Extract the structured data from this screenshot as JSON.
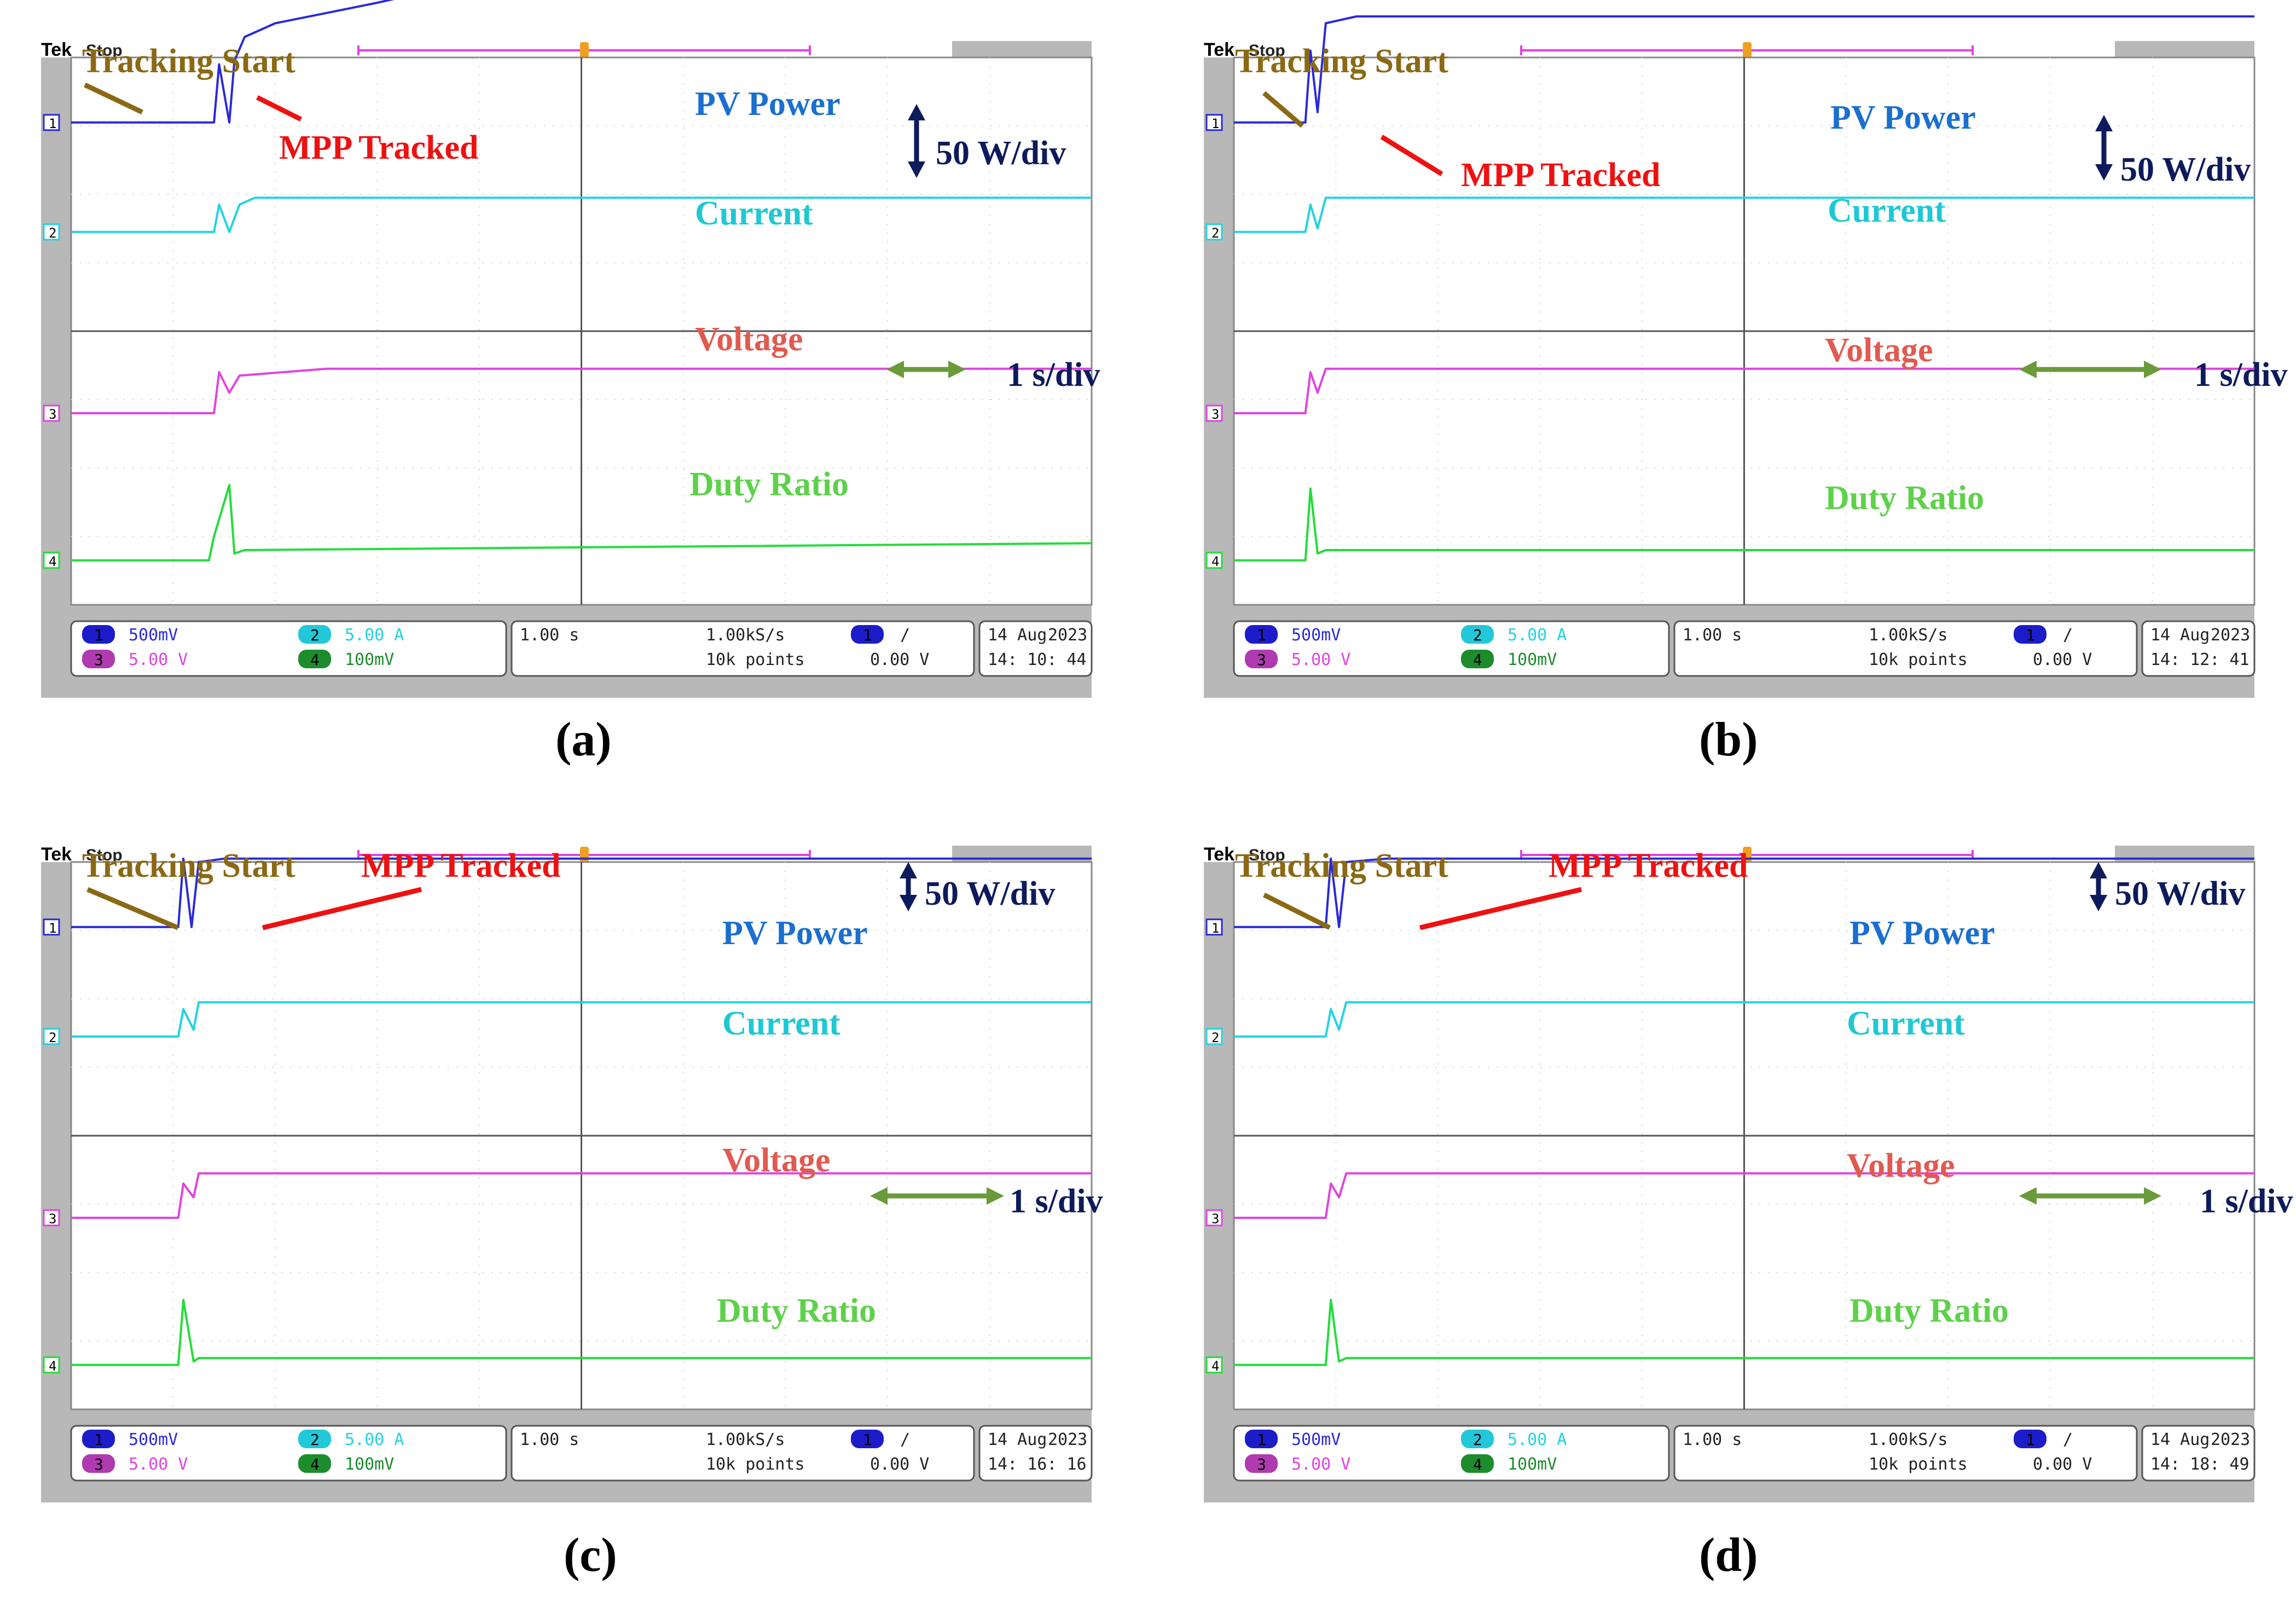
{
  "figure": {
    "subfigures": [
      {
        "caption": "(a)",
        "scope": {
          "brand": "Tek",
          "status": "Stop",
          "ch1": {
            "num": "1",
            "scale": "500mV"
          },
          "ch2": {
            "num": "2",
            "scale": "5.00 A"
          },
          "ch3": {
            "num": "3",
            "scale": "5.00 V"
          },
          "ch4": {
            "num": "4",
            "scale": "100mV"
          },
          "timebase": "1.00 s",
          "sample_rate": "1.00kS/s",
          "record_length": "10k points",
          "trigger_channel": "1",
          "trigger_slope": "/",
          "trigger_level": "0.00 V",
          "date": "14 Aug",
          "year": "2023",
          "time": "14: 10: 44"
        },
        "labels": {
          "tracking_start": "Tracking Start",
          "mpp_tracked": "MPP Tracked",
          "pv_power": "PV Power",
          "current": "Current",
          "voltage": "Voltage",
          "duty_ratio": "Duty Ratio",
          "power_scale": "50 W/div",
          "time_scale": "1 s/div"
        }
      },
      {
        "caption": "(b)",
        "scope": {
          "brand": "Tek",
          "status": "Stop",
          "ch1": {
            "num": "1",
            "scale": "500mV"
          },
          "ch2": {
            "num": "2",
            "scale": "5.00 A"
          },
          "ch3": {
            "num": "3",
            "scale": "5.00 V"
          },
          "ch4": {
            "num": "4",
            "scale": "100mV"
          },
          "timebase": "1.00 s",
          "sample_rate": "1.00kS/s",
          "record_length": "10k points",
          "trigger_channel": "1",
          "trigger_slope": "/",
          "trigger_level": "0.00 V",
          "date": "14 Aug",
          "year": "2023",
          "time": "14: 12: 41"
        },
        "labels": {
          "tracking_start": "Tracking Start",
          "mpp_tracked": "MPP Tracked",
          "pv_power": "PV Power",
          "current": "Current",
          "voltage": "Voltage",
          "duty_ratio": "Duty Ratio",
          "power_scale": "50 W/div",
          "time_scale": "1 s/div"
        }
      },
      {
        "caption": "(c)",
        "scope": {
          "brand": "Tek",
          "status": "Stop",
          "ch1": {
            "num": "1",
            "scale": "500mV"
          },
          "ch2": {
            "num": "2",
            "scale": "5.00 A"
          },
          "ch3": {
            "num": "3",
            "scale": "5.00 V"
          },
          "ch4": {
            "num": "4",
            "scale": "100mV"
          },
          "timebase": "1.00 s",
          "sample_rate": "1.00kS/s",
          "record_length": "10k points",
          "trigger_channel": "1",
          "trigger_slope": "/",
          "trigger_level": "0.00 V",
          "date": "14 Aug",
          "year": "2023",
          "time": "14: 16: 16"
        },
        "labels": {
          "tracking_start": "Tracking Start",
          "mpp_tracked": "MPP Tracked",
          "pv_power": "PV Power",
          "current": "Current",
          "voltage": "Voltage",
          "duty_ratio": "Duty Ratio",
          "power_scale": "50 W/div",
          "time_scale": "1 s/div"
        }
      },
      {
        "caption": "(d)",
        "scope": {
          "brand": "Tek",
          "status": "Stop",
          "ch1": {
            "num": "1",
            "scale": "500mV"
          },
          "ch2": {
            "num": "2",
            "scale": "5.00 A"
          },
          "ch3": {
            "num": "3",
            "scale": "5.00 V"
          },
          "ch4": {
            "num": "4",
            "scale": "100mV"
          },
          "timebase": "1.00 s",
          "sample_rate": "1.00kS/s",
          "record_length": "10k points",
          "trigger_channel": "1",
          "trigger_slope": "/",
          "trigger_level": "0.00 V",
          "date": "14 Aug",
          "year": "2023",
          "time": "14: 18: 49"
        },
        "labels": {
          "tracking_start": "Tracking Start",
          "mpp_tracked": "MPP Tracked",
          "pv_power": "PV Power",
          "current": "Current",
          "voltage": "Voltage",
          "duty_ratio": "Duty Ratio",
          "power_scale": "50 W/div",
          "time_scale": "1 s/div"
        }
      }
    ]
  },
  "colors": {
    "ch1": "#2a2ad8",
    "ch2": "#22d3e0",
    "ch3": "#e043e0",
    "ch4": "#22dd3a",
    "pv_label": "#1a6fcf",
    "current_label": "#1ec8d4",
    "voltage_label": "#e05a50",
    "duty_label": "#5ed14a",
    "tracking_label": "#8b6914",
    "mpp_label": "#ee1111",
    "scale_label": "#0d1a5c",
    "time_arrow": "#6a9a3a",
    "frame": "#b8b8b8"
  },
  "chart_data": [
    {
      "type": "line",
      "title": "(a)",
      "xlabel": "time (1 s/div)",
      "ylabel": "",
      "xlim": [
        0,
        10
      ],
      "grid": true,
      "series": [
        {
          "name": "PV Power",
          "channel": 1,
          "unit": "div",
          "x": [
            0,
            1.4,
            1.45,
            1.55,
            1.6,
            1.7,
            2.0,
            2.5,
            3.0,
            3.6,
            10
          ],
          "values": [
            3.05,
            3.05,
            3.9,
            3.05,
            3.95,
            4.3,
            4.5,
            4.65,
            4.8,
            5.0,
            5.0
          ]
        },
        {
          "name": "Current",
          "channel": 2,
          "unit": "div",
          "x": [
            0,
            1.4,
            1.45,
            1.55,
            1.65,
            1.8,
            10
          ],
          "values": [
            1.45,
            1.45,
            1.85,
            1.45,
            1.85,
            1.95,
            1.95
          ]
        },
        {
          "name": "Voltage",
          "channel": 3,
          "unit": "div",
          "x": [
            0,
            1.4,
            1.45,
            1.55,
            1.65,
            2.5,
            10
          ],
          "values": [
            -1.2,
            -1.2,
            -0.6,
            -0.9,
            -0.65,
            -0.55,
            -0.55
          ]
        },
        {
          "name": "Duty Ratio",
          "channel": 4,
          "unit": "div",
          "x": [
            0,
            1.35,
            1.4,
            1.55,
            1.6,
            1.7,
            10
          ],
          "values": [
            -3.35,
            -3.35,
            -3.0,
            -2.25,
            -3.25,
            -3.2,
            -3.1
          ]
        }
      ]
    },
    {
      "type": "line",
      "title": "(b)",
      "xlabel": "time (1 s/div)",
      "ylabel": "",
      "xlim": [
        0,
        10
      ],
      "grid": true,
      "series": [
        {
          "name": "PV Power",
          "channel": 1,
          "unit": "div",
          "x": [
            0,
            0.7,
            0.75,
            0.82,
            0.9,
            1.2,
            10
          ],
          "values": [
            3.05,
            3.05,
            4.1,
            3.2,
            4.5,
            4.6,
            4.6
          ]
        },
        {
          "name": "Current",
          "channel": 2,
          "unit": "div",
          "x": [
            0,
            0.7,
            0.75,
            0.82,
            0.9,
            10
          ],
          "values": [
            1.45,
            1.45,
            1.85,
            1.5,
            1.95,
            1.95
          ]
        },
        {
          "name": "Voltage",
          "channel": 3,
          "unit": "div",
          "x": [
            0,
            0.7,
            0.75,
            0.82,
            0.9,
            10
          ],
          "values": [
            -1.2,
            -1.2,
            -0.6,
            -0.9,
            -0.55,
            -0.55
          ]
        },
        {
          "name": "Duty Ratio",
          "channel": 4,
          "unit": "div",
          "x": [
            0,
            0.7,
            0.75,
            0.82,
            0.9,
            10
          ],
          "values": [
            -3.35,
            -3.35,
            -2.3,
            -3.25,
            -3.2,
            -3.2
          ]
        }
      ]
    },
    {
      "type": "line",
      "title": "(c)",
      "xlabel": "time (1 s/div)",
      "ylabel": "",
      "xlim": [
        0,
        10
      ],
      "grid": true,
      "series": [
        {
          "name": "PV Power",
          "channel": 1,
          "unit": "div",
          "x": [
            0,
            1.05,
            1.1,
            1.18,
            1.25,
            1.5,
            10
          ],
          "values": [
            3.05,
            3.05,
            4.05,
            3.05,
            4.0,
            4.05,
            4.05
          ]
        },
        {
          "name": "Current",
          "channel": 2,
          "unit": "div",
          "x": [
            0,
            1.05,
            1.1,
            1.2,
            1.25,
            10
          ],
          "values": [
            1.45,
            1.45,
            1.85,
            1.55,
            1.95,
            1.95
          ]
        },
        {
          "name": "Voltage",
          "channel": 3,
          "unit": "div",
          "x": [
            0,
            1.05,
            1.1,
            1.2,
            1.25,
            10
          ],
          "values": [
            -1.2,
            -1.2,
            -0.7,
            -0.9,
            -0.55,
            -0.55
          ]
        },
        {
          "name": "Duty Ratio",
          "channel": 4,
          "unit": "div",
          "x": [
            0,
            1.05,
            1.1,
            1.2,
            1.25,
            10
          ],
          "values": [
            -3.35,
            -3.35,
            -2.4,
            -3.3,
            -3.25,
            -3.25
          ]
        }
      ]
    },
    {
      "type": "line",
      "title": "(d)",
      "xlabel": "time (1 s/div)",
      "ylabel": "",
      "xlim": [
        0,
        10
      ],
      "grid": true,
      "series": [
        {
          "name": "PV Power",
          "channel": 1,
          "unit": "div",
          "x": [
            0,
            0.9,
            0.95,
            1.03,
            1.1,
            1.5,
            10
          ],
          "values": [
            3.05,
            3.05,
            4.05,
            3.05,
            4.0,
            4.05,
            4.05
          ]
        },
        {
          "name": "Current",
          "channel": 2,
          "unit": "div",
          "x": [
            0,
            0.9,
            0.95,
            1.03,
            1.1,
            10
          ],
          "values": [
            1.45,
            1.45,
            1.85,
            1.55,
            1.95,
            1.95
          ]
        },
        {
          "name": "Voltage",
          "channel": 3,
          "unit": "div",
          "x": [
            0,
            0.9,
            0.95,
            1.03,
            1.1,
            10
          ],
          "values": [
            -1.2,
            -1.2,
            -0.7,
            -0.9,
            -0.55,
            -0.55
          ]
        },
        {
          "name": "Duty Ratio",
          "channel": 4,
          "unit": "div",
          "x": [
            0,
            0.9,
            0.95,
            1.03,
            1.1,
            10
          ],
          "values": [
            -3.35,
            -3.35,
            -2.4,
            -3.3,
            -3.25,
            -3.25
          ]
        }
      ]
    }
  ]
}
